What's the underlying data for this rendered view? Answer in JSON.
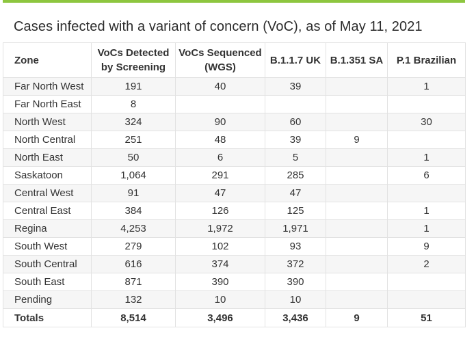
{
  "title": "Cases infected with a variant of concern (VoC), as of May 11, 2021",
  "columns": {
    "zone": "Zone",
    "screening_line1": "VoCs Detected",
    "screening_line2": "by Screening",
    "sequenced_line1": "VoCs Sequenced",
    "sequenced_line2": "(WGS)",
    "uk": "B.1.1.7 UK",
    "sa": "B.1.351 SA",
    "brazilian": "P.1 Brazilian"
  },
  "rows": [
    {
      "zone": "Far North West",
      "screening": "191",
      "sequenced": "40",
      "uk": "39",
      "sa": "",
      "brazilian": "1"
    },
    {
      "zone": "Far North East",
      "screening": "8",
      "sequenced": "",
      "uk": "",
      "sa": "",
      "brazilian": ""
    },
    {
      "zone": "North West",
      "screening": "324",
      "sequenced": "90",
      "uk": "60",
      "sa": "",
      "brazilian": "30"
    },
    {
      "zone": "North Central",
      "screening": "251",
      "sequenced": "48",
      "uk": "39",
      "sa": "9",
      "brazilian": ""
    },
    {
      "zone": "North East",
      "screening": "50",
      "sequenced": "6",
      "uk": "5",
      "sa": "",
      "brazilian": "1"
    },
    {
      "zone": "Saskatoon",
      "screening": "1,064",
      "sequenced": "291",
      "uk": "285",
      "sa": "",
      "brazilian": "6"
    },
    {
      "zone": "Central West",
      "screening": "91",
      "sequenced": "47",
      "uk": "47",
      "sa": "",
      "brazilian": ""
    },
    {
      "zone": "Central East",
      "screening": "384",
      "sequenced": "126",
      "uk": "125",
      "sa": "",
      "brazilian": "1"
    },
    {
      "zone": "Regina",
      "screening": "4,253",
      "sequenced": "1,972",
      "uk": "1,971",
      "sa": "",
      "brazilian": "1"
    },
    {
      "zone": "South West",
      "screening": "279",
      "sequenced": "102",
      "uk": "93",
      "sa": "",
      "brazilian": "9"
    },
    {
      "zone": "South Central",
      "screening": "616",
      "sequenced": "374",
      "uk": "372",
      "sa": "",
      "brazilian": "2"
    },
    {
      "zone": "South East",
      "screening": "871",
      "sequenced": "390",
      "uk": "390",
      "sa": "",
      "brazilian": ""
    },
    {
      "zone": "Pending",
      "screening": "132",
      "sequenced": "10",
      "uk": "10",
      "sa": "",
      "brazilian": ""
    }
  ],
  "totals": {
    "zone": "Totals",
    "screening": "8,514",
    "sequenced": "3,496",
    "uk": "3,436",
    "sa": "9",
    "brazilian": "51"
  },
  "colors": {
    "accent_bar": "#8dc63f",
    "stripe": "#f6f6f6",
    "border": "#e2e2e2"
  }
}
